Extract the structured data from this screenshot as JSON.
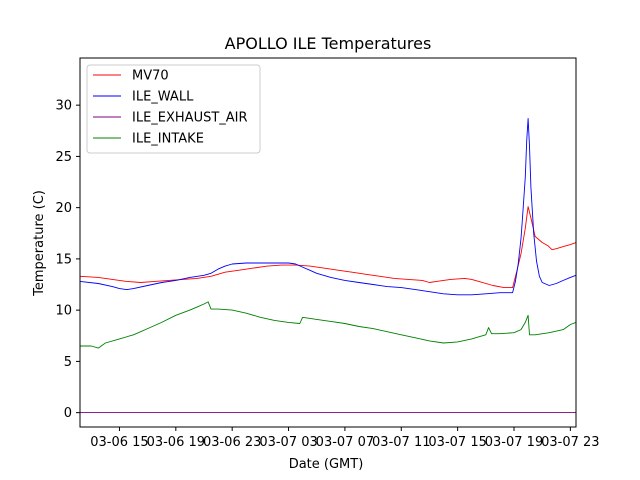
{
  "chart_data": {
    "type": "line",
    "title": "APOLLO ILE Temperatures",
    "xlabel": "Date (GMT)",
    "ylabel": "Temperature (C)",
    "x_unit": "hours",
    "x_ticks": [
      {
        "x": 15,
        "label": "03-06 15"
      },
      {
        "x": 19,
        "label": "03-06 19"
      },
      {
        "x": 23,
        "label": "03-06 23"
      },
      {
        "x": 27,
        "label": "03-07 03"
      },
      {
        "x": 31,
        "label": "03-07 07"
      },
      {
        "x": 35,
        "label": "03-07 11"
      },
      {
        "x": 39,
        "label": "03-07 15"
      },
      {
        "x": 43,
        "label": "03-07 19"
      },
      {
        "x": 47,
        "label": "03-07 23"
      }
    ],
    "y_ticks": [
      0,
      5,
      10,
      15,
      20,
      25,
      30
    ],
    "xlim": [
      12.2,
      47.4
    ],
    "ylim": [
      -1.4,
      34.6
    ],
    "legend_position": "top-left",
    "grid": false,
    "series": [
      {
        "name": "MV70",
        "color": "#ff0000",
        "points": [
          [
            12.2,
            13.3
          ],
          [
            13.5,
            13.2
          ],
          [
            14.5,
            13.0
          ],
          [
            15.5,
            12.8
          ],
          [
            16.5,
            12.7
          ],
          [
            17.5,
            12.8
          ],
          [
            18.5,
            12.9
          ],
          [
            19.5,
            13.0
          ],
          [
            20.5,
            13.1
          ],
          [
            21.5,
            13.3
          ],
          [
            22.5,
            13.7
          ],
          [
            23.5,
            13.9
          ],
          [
            24.5,
            14.1
          ],
          [
            25.5,
            14.3
          ],
          [
            26.5,
            14.4
          ],
          [
            27.5,
            14.4
          ],
          [
            28.5,
            14.3
          ],
          [
            29.5,
            14.1
          ],
          [
            30.5,
            13.9
          ],
          [
            31.5,
            13.7
          ],
          [
            32.5,
            13.5
          ],
          [
            33.5,
            13.3
          ],
          [
            34.5,
            13.1
          ],
          [
            35.5,
            13.0
          ],
          [
            36.5,
            12.9
          ],
          [
            37.0,
            12.7
          ],
          [
            37.5,
            12.8
          ],
          [
            38.5,
            13.0
          ],
          [
            39.5,
            13.1
          ],
          [
            40.0,
            13.0
          ],
          [
            40.5,
            12.8
          ],
          [
            41.5,
            12.4
          ],
          [
            42.3,
            12.2
          ],
          [
            42.9,
            12.2
          ],
          [
            43.2,
            13.8
          ],
          [
            43.5,
            15.5
          ],
          [
            43.8,
            18.0
          ],
          [
            44.0,
            20.1
          ],
          [
            44.2,
            19.0
          ],
          [
            44.5,
            17.2
          ],
          [
            45.0,
            16.6
          ],
          [
            45.4,
            16.3
          ],
          [
            45.7,
            15.9
          ],
          [
            46.0,
            16.0
          ],
          [
            46.5,
            16.2
          ],
          [
            47.0,
            16.4
          ],
          [
            47.4,
            16.6
          ]
        ]
      },
      {
        "name": "ILE_WALL",
        "color": "#0000ff",
        "points": [
          [
            12.2,
            12.8
          ],
          [
            13.5,
            12.6
          ],
          [
            14.5,
            12.3
          ],
          [
            15.0,
            12.1
          ],
          [
            15.5,
            12.0
          ],
          [
            16.0,
            12.1
          ],
          [
            17.0,
            12.4
          ],
          [
            18.0,
            12.7
          ],
          [
            19.0,
            12.9
          ],
          [
            20.0,
            13.2
          ],
          [
            21.0,
            13.4
          ],
          [
            21.5,
            13.6
          ],
          [
            22.0,
            14.0
          ],
          [
            22.5,
            14.3
          ],
          [
            23.0,
            14.5
          ],
          [
            24.0,
            14.6
          ],
          [
            25.0,
            14.6
          ],
          [
            26.0,
            14.6
          ],
          [
            27.0,
            14.6
          ],
          [
            27.5,
            14.5
          ],
          [
            28.0,
            14.2
          ],
          [
            28.5,
            13.9
          ],
          [
            29.0,
            13.6
          ],
          [
            30.0,
            13.2
          ],
          [
            31.0,
            12.9
          ],
          [
            32.0,
            12.7
          ],
          [
            33.0,
            12.5
          ],
          [
            34.0,
            12.3
          ],
          [
            35.0,
            12.2
          ],
          [
            36.0,
            12.0
          ],
          [
            37.0,
            11.8
          ],
          [
            38.0,
            11.6
          ],
          [
            39.0,
            11.5
          ],
          [
            40.0,
            11.5
          ],
          [
            41.0,
            11.6
          ],
          [
            42.0,
            11.7
          ],
          [
            42.9,
            11.7
          ],
          [
            43.1,
            12.8
          ],
          [
            43.3,
            14.5
          ],
          [
            43.5,
            17.0
          ],
          [
            43.6,
            19.0
          ],
          [
            43.8,
            23.0
          ],
          [
            43.9,
            26.5
          ],
          [
            44.0,
            28.7
          ],
          [
            44.1,
            26.0
          ],
          [
            44.2,
            22.0
          ],
          [
            44.4,
            17.5
          ],
          [
            44.6,
            14.8
          ],
          [
            44.8,
            13.3
          ],
          [
            45.0,
            12.7
          ],
          [
            45.5,
            12.4
          ],
          [
            46.0,
            12.6
          ],
          [
            46.5,
            12.9
          ],
          [
            47.0,
            13.2
          ],
          [
            47.4,
            13.4
          ]
        ]
      },
      {
        "name": "ILE_EXHAUST_AIR",
        "color": "#800080",
        "points": [
          [
            12.2,
            0.0
          ],
          [
            47.4,
            0.0
          ]
        ]
      },
      {
        "name": "ILE_INTAKE",
        "color": "#008000",
        "points": [
          [
            12.2,
            6.5
          ],
          [
            13.0,
            6.5
          ],
          [
            13.5,
            6.3
          ],
          [
            14.0,
            6.8
          ],
          [
            15.0,
            7.2
          ],
          [
            16.0,
            7.6
          ],
          [
            17.0,
            8.2
          ],
          [
            18.0,
            8.8
          ],
          [
            19.0,
            9.5
          ],
          [
            20.0,
            10.0
          ],
          [
            20.5,
            10.3
          ],
          [
            21.0,
            10.6
          ],
          [
            21.3,
            10.8
          ],
          [
            21.5,
            10.1
          ],
          [
            22.0,
            10.1
          ],
          [
            23.0,
            10.0
          ],
          [
            24.0,
            9.7
          ],
          [
            25.0,
            9.3
          ],
          [
            26.0,
            9.0
          ],
          [
            27.0,
            8.8
          ],
          [
            27.8,
            8.7
          ],
          [
            28.0,
            9.3
          ],
          [
            29.0,
            9.1
          ],
          [
            30.0,
            8.9
          ],
          [
            31.0,
            8.7
          ],
          [
            32.0,
            8.4
          ],
          [
            33.0,
            8.2
          ],
          [
            34.0,
            7.9
          ],
          [
            35.0,
            7.6
          ],
          [
            36.0,
            7.3
          ],
          [
            37.0,
            7.0
          ],
          [
            38.0,
            6.8
          ],
          [
            39.0,
            6.9
          ],
          [
            40.0,
            7.2
          ],
          [
            40.5,
            7.4
          ],
          [
            41.0,
            7.6
          ],
          [
            41.2,
            8.3
          ],
          [
            41.4,
            7.7
          ],
          [
            42.0,
            7.7
          ],
          [
            43.0,
            7.8
          ],
          [
            43.5,
            8.1
          ],
          [
            43.8,
            8.8
          ],
          [
            44.0,
            9.5
          ],
          [
            44.1,
            7.6
          ],
          [
            44.5,
            7.6
          ],
          [
            45.5,
            7.8
          ],
          [
            46.5,
            8.1
          ],
          [
            47.0,
            8.6
          ],
          [
            47.4,
            8.8
          ]
        ]
      }
    ]
  }
}
